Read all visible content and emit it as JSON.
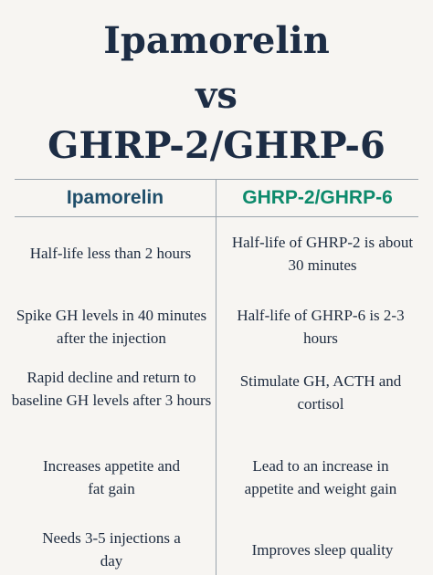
{
  "title": {
    "line1": "Ipamorelin",
    "line2": "vs",
    "line3": "GHRP-2/GHRP-6"
  },
  "columns": {
    "left_header": "Ipamorelin",
    "right_header": "GHRP-2/GHRP-6"
  },
  "rows": [
    {
      "left": "Half-life less than 2 hours",
      "right": "Half-life of GHRP-2 is about 30 minutes"
    },
    {
      "left": "Spike GH levels in 40 minutes after the injection",
      "right": "Half-life of GHRP-6 is 2-3 hours"
    },
    {
      "left": "Rapid decline and return to baseline GH levels after 3 hours",
      "right": "Stimulate GH, ACTH and cortisol"
    },
    {
      "left": "Increases appetite and fat gain",
      "right": "Lead to an increase in appetite and weight gain"
    },
    {
      "left": "Needs 3-5 injections a day",
      "right": "Improves sleep quality"
    }
  ],
  "colors": {
    "background": "#f7f5f2",
    "title": "#1d2d45",
    "left_header": "#1f4e6a",
    "right_header": "#0d8a6c",
    "rule": "#9aa4ad"
  }
}
